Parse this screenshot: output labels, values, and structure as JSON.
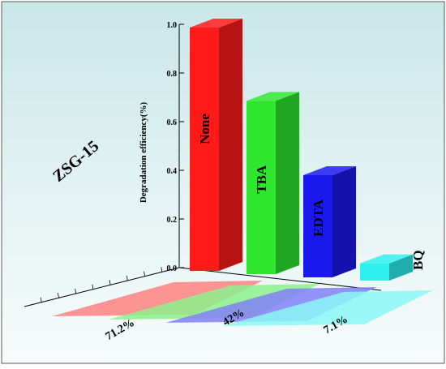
{
  "chart_data": {
    "type": "bar",
    "title": "ZSG-15",
    "xlabel": "",
    "ylabel": "Degradation efficiency(%)",
    "ylim": [
      0,
      1.0
    ],
    "y_ticks": [
      "0.0",
      "0.2",
      "0.4",
      "0.6",
      "0.8",
      "1.0"
    ],
    "grid": false,
    "legend": "none",
    "bar_labels": [
      "None",
      "TBA",
      "EDTA",
      "BQ"
    ],
    "values": [
      1.0,
      0.712,
      0.42,
      0.071
    ],
    "shadow_labels": [
      "",
      "71.2%",
      "42%",
      "7.1%"
    ],
    "colors": [
      "#ff1a1a",
      "#2ee62e",
      "#1a1aee",
      "#2ef0ee"
    ]
  }
}
